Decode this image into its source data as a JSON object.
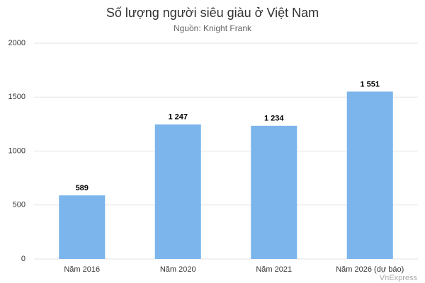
{
  "chart_data": {
    "type": "bar",
    "title": "Số lượng người siêu giàu ở Việt Nam",
    "subtitle": "Nguồn: Knight Frank",
    "categories": [
      "Năm 2016",
      "Năm 2020",
      "Năm 2021",
      "Năm 2026 (dự báo)"
    ],
    "values": [
      589,
      1247,
      1234,
      1551
    ],
    "value_labels": [
      "589",
      "1 247",
      "1 234",
      "1 551"
    ],
    "color": "#7cb5ec",
    "ylim": [
      0,
      2000
    ],
    "yticks": [
      0,
      500,
      1000,
      1500,
      2000
    ],
    "grid": true,
    "watermark": "VnExpress"
  }
}
